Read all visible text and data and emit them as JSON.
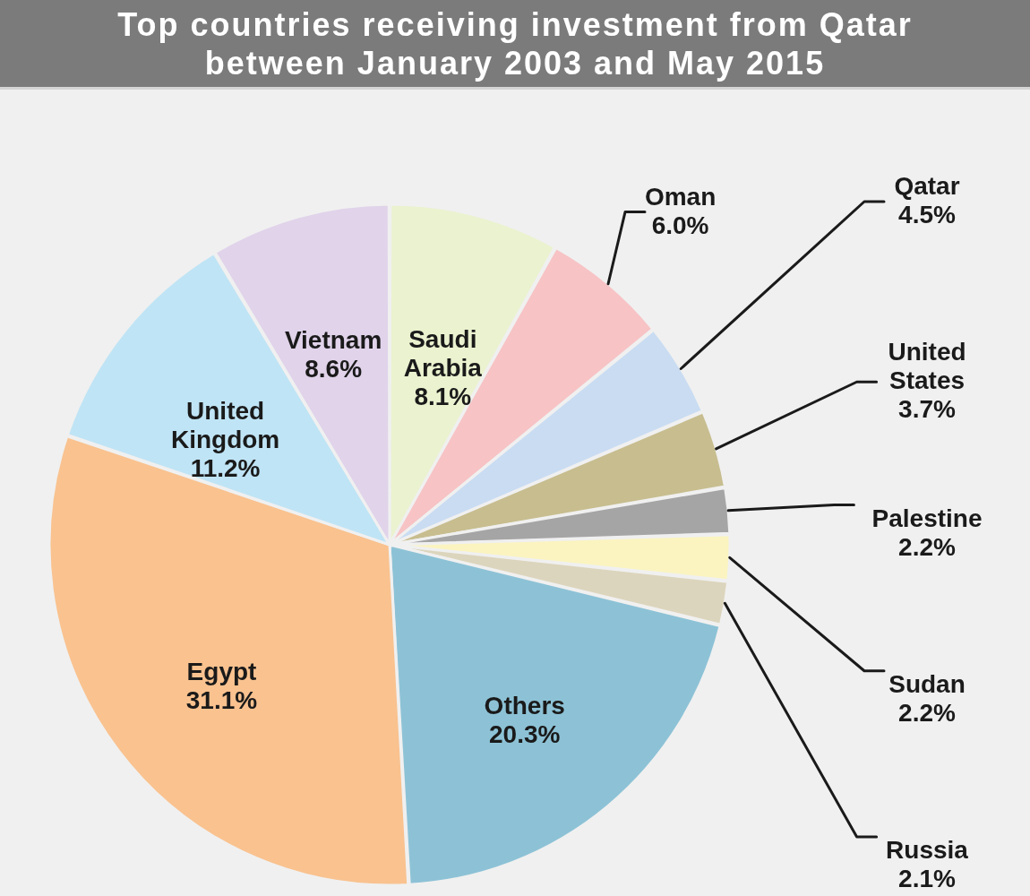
{
  "chart_data": {
    "type": "pie",
    "title": "Top countries receiving investment from Qatar between January 2003 and May 2015",
    "categories": [
      "Saudi Arabia",
      "Oman",
      "Qatar",
      "United States",
      "Palestine",
      "Sudan",
      "Russia",
      "Others",
      "Egypt",
      "United Kingdom",
      "Vietnam"
    ],
    "values": [
      8.1,
      6.0,
      4.5,
      3.7,
      2.2,
      2.2,
      2.1,
      20.3,
      31.1,
      11.2,
      8.6
    ],
    "value_labels": [
      "8.1%",
      "6.0%",
      "4.5%",
      "3.7%",
      "2.2%",
      "2.2%",
      "2.1%",
      "20.3%",
      "31.1%",
      "11.2%",
      "8.6%"
    ],
    "colors": [
      "#eaf2cf",
      "#f7c3c5",
      "#c9dcf2",
      "#c7bd8f",
      "#a5a5a5",
      "#fbf4c0",
      "#dcd5bd",
      "#8dc2d6",
      "#f9c28f",
      "#bfe4f5",
      "#e0d3ea"
    ]
  }
}
